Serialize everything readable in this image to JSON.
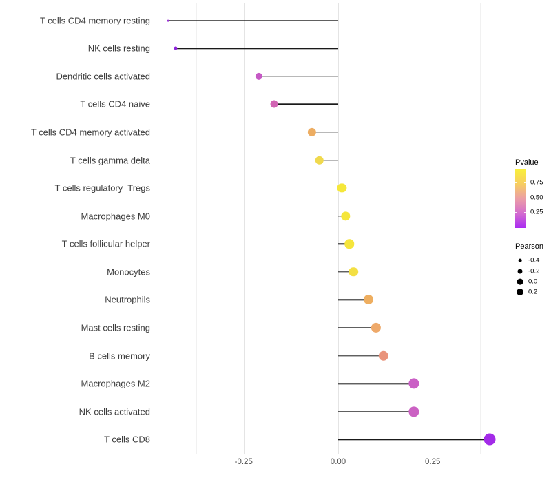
{
  "chart_data": {
    "type": "scatter",
    "subtype": "lollipop",
    "orientation": "horizontal",
    "title": "",
    "xlabel": "",
    "ylabel": "",
    "grid": "on",
    "legend_position": "right",
    "baseline": 0,
    "categories": [
      "T cells CD4 memory resting",
      "NK cells resting",
      "Dendritic cells activated",
      "T cells CD4 naive",
      "T cells CD4 memory activated",
      "T cells gamma delta",
      "T cells regulatory  Tregs",
      "Macrophages M0",
      "T cells follicular helper",
      "Monocytes",
      "Neutrophils",
      "Mast cells resting",
      "B cells memory",
      "Macrophages M2",
      "NK cells activated",
      "T cells CD8"
    ],
    "series": [
      {
        "name": "Pearson",
        "values": [
          -0.45,
          -0.43,
          -0.21,
          -0.17,
          -0.07,
          -0.05,
          0.01,
          0.02,
          0.03,
          0.04,
          0.08,
          0.1,
          0.12,
          0.2,
          0.2,
          0.4
        ]
      }
    ],
    "point_colors": [
      "#9b2fd8",
      "#8c20db",
      "#c659c5",
      "#d164b3",
      "#edad62",
      "#f0d94d",
      "#f5e73a",
      "#f5e63b",
      "#f5e53c",
      "#f3df43",
      "#eeae60",
      "#eea96a",
      "#e9937b",
      "#ca5fc5",
      "#cb61c3",
      "#a32be8"
    ],
    "x_axis": {
      "range": [
        -0.4925,
        0.4425
      ],
      "ticks": [
        {
          "value": -0.25,
          "label": "-0.25"
        },
        {
          "value": 0.0,
          "label": "0.00"
        },
        {
          "value": 0.25,
          "label": "0.25"
        }
      ],
      "minor_ticks": [
        -0.375,
        -0.125,
        0.125,
        0.375
      ]
    },
    "legends": {
      "pvalue": {
        "title": "Pvalue",
        "gradient_top_to_bottom": [
          "#f9f139",
          "#f7ce5f",
          "#ec9fa4",
          "#d46dce",
          "#aa2bf2"
        ],
        "ticks": [
          {
            "label": "0.75",
            "pos": 0.233
          },
          {
            "label": "0.50",
            "pos": 0.483
          },
          {
            "label": "0.25",
            "pos": 0.733
          }
        ]
      },
      "pearson": {
        "title": "Pearson",
        "items": [
          {
            "label": "-0.4",
            "diameter": 4.7
          },
          {
            "label": "-0.2",
            "diameter": 7
          },
          {
            "label": "0.0",
            "diameter": 8.7
          },
          {
            "label": "0.2",
            "diameter": 10
          }
        ]
      }
    }
  }
}
